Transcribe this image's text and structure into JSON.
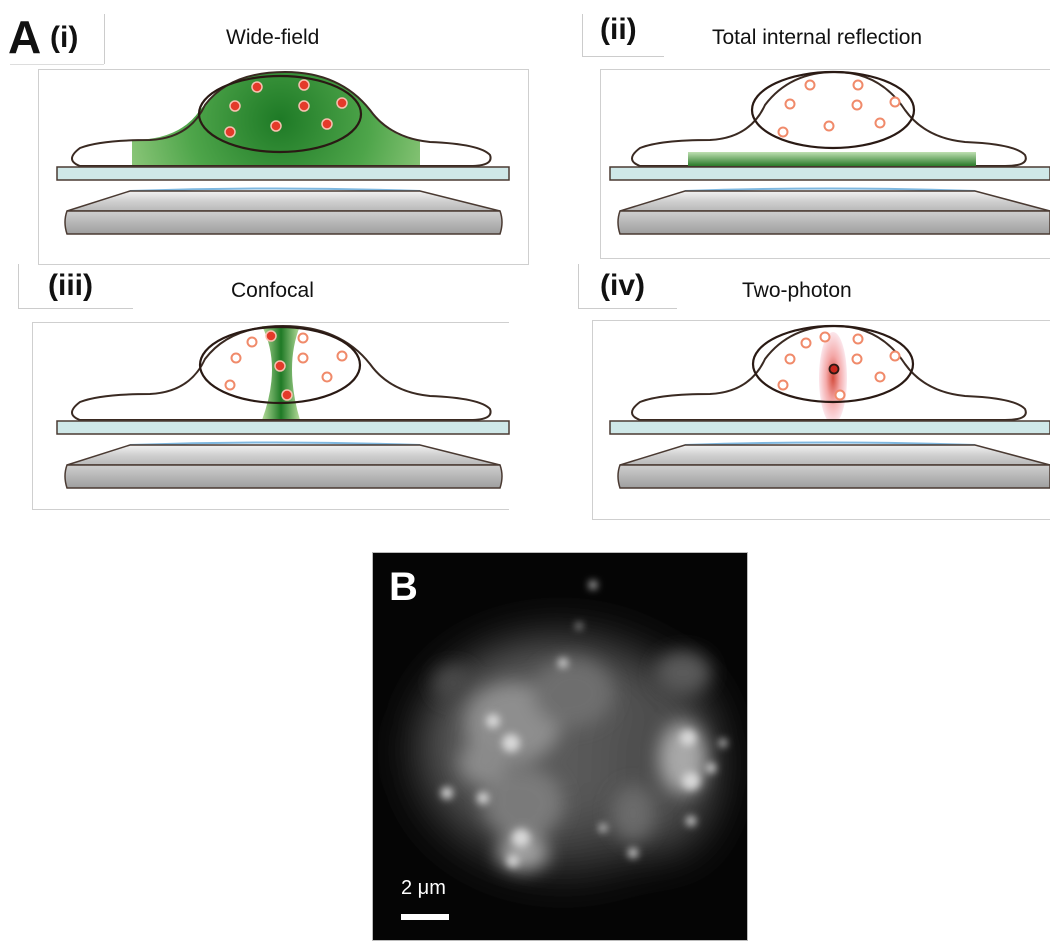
{
  "panel_a": {
    "letter": "A",
    "subpanels": [
      {
        "roman": "(i)",
        "title": "Wide-field"
      },
      {
        "roman": "(ii)",
        "title": "Total internal reflection"
      },
      {
        "roman": "(iii)",
        "title": "Confocal"
      },
      {
        "roman": "(iv)",
        "title": "Two-photon"
      }
    ]
  },
  "panel_b": {
    "letter": "B",
    "scale_bar_label": "2 μm"
  },
  "colors": {
    "cell_outline": "#3a2a22",
    "coverslip": "#cfe8e8",
    "lens_gray": "#d8d8d8",
    "immersion_blue": "#7fb8e0",
    "fluor_green": "#2e8a2e",
    "light_green": "#a6d58a",
    "fluorophore_red": "#e43a2a",
    "fluorophore_ring": "#f0a080",
    "twophoton_pink": "#f4c0c8"
  }
}
